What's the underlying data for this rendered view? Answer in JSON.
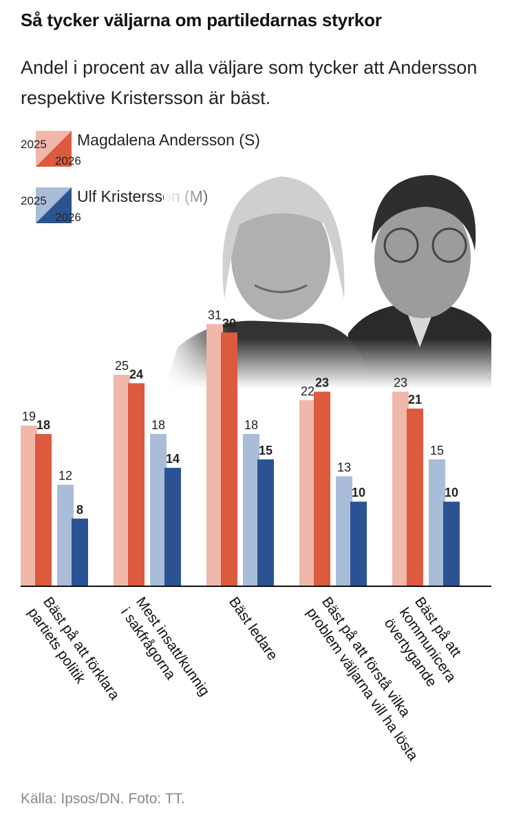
{
  "title": "Så tycker väljarna om partiledarnas styrkor",
  "subtitle": "Andel i procent av alla väljare som tycker att Andersson respektive Kristersson är bäst.",
  "legend": {
    "year_old": "2025",
    "year_new": "2026",
    "andersson": "Magdalena Andersson (S)",
    "kristersson": "Ulf Kristersson (M)"
  },
  "colors": {
    "andersson_2025": "#efb8aa",
    "andersson_2026": "#dc5a3e",
    "kristersson_2025": "#a9bcd8",
    "kristersson_2026": "#2b5394"
  },
  "photo": {
    "description_icon": "party-leaders-photo"
  },
  "source": "Källa: Ipsos/DN. Foto: TT.",
  "chart_data": {
    "type": "bar",
    "categories": [
      [
        "Bäst på att förklara",
        "partiets politik"
      ],
      [
        "Mest insatt/kunnig",
        "i sakfrågorna"
      ],
      [
        "Bäst ledare"
      ],
      [
        "Bäst på att förstå vilka",
        "problem väljarna vill ha lösta"
      ],
      [
        "Bäst på att",
        "kommunicera",
        "övertygande"
      ]
    ],
    "series": [
      {
        "name": "Magdalena Andersson (S) 2025",
        "values": [
          19,
          25,
          31,
          22,
          23
        ]
      },
      {
        "name": "Magdalena Andersson (S) 2026",
        "values": [
          18,
          24,
          30,
          23,
          21
        ]
      },
      {
        "name": "Ulf Kristersson (M) 2025",
        "values": [
          12,
          18,
          18,
          13,
          15
        ]
      },
      {
        "name": "Ulf Kristersson (M) 2026",
        "values": [
          8,
          14,
          15,
          10,
          10
        ]
      }
    ],
    "ylim": [
      0,
      31
    ],
    "grid": false,
    "legend_position": "top-left"
  }
}
